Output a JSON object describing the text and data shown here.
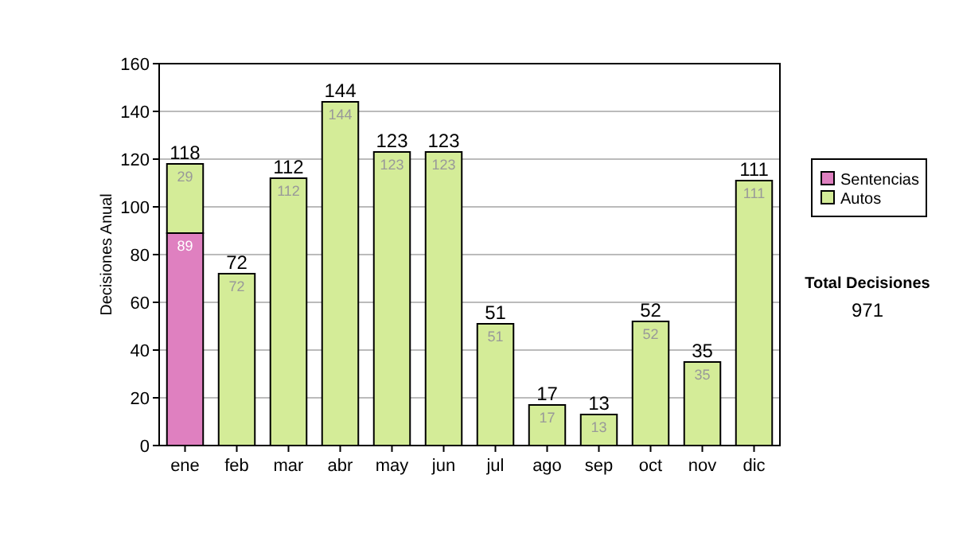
{
  "chart_data": {
    "type": "bar",
    "stacked": true,
    "ylabel": "Decisiones Anual",
    "categories": [
      "ene",
      "feb",
      "mar",
      "abr",
      "may",
      "jun",
      "jul",
      "ago",
      "sep",
      "oct",
      "nov",
      "dic"
    ],
    "series": [
      {
        "name": "Sentencias",
        "color": "#df80c0",
        "values": [
          89,
          null,
          null,
          null,
          null,
          null,
          null,
          null,
          null,
          null,
          null,
          null
        ],
        "value_labels": [
          "89",
          null,
          null,
          null,
          null,
          null,
          null,
          null,
          null,
          null,
          null,
          null
        ]
      },
      {
        "name": "Autos",
        "color": "#d4ec98",
        "values": [
          29,
          72,
          112,
          144,
          123,
          123,
          51,
          17,
          13,
          52,
          35,
          111
        ],
        "value_labels": [
          "29",
          "72",
          "112",
          "144",
          "123",
          "123",
          "51",
          "17",
          "13",
          "52",
          "35",
          "111"
        ]
      }
    ],
    "totals": [
      "118",
      "72",
      "112",
      "144",
      "123",
      "123",
      "51",
      "17",
      "13",
      "52",
      "35",
      "111"
    ],
    "ylim": [
      0,
      160
    ],
    "yticks": [
      0,
      20,
      40,
      60,
      80,
      100,
      120,
      140,
      160
    ],
    "grid": "y",
    "legend": "right",
    "annotations": [
      "Total Decisiones",
      "971"
    ]
  }
}
